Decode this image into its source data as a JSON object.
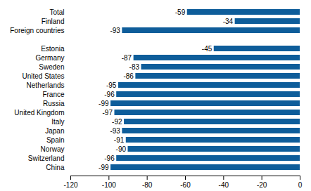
{
  "chart_data": {
    "type": "bar",
    "orientation": "horizontal",
    "categories": [
      "Total",
      "Finland",
      "Foreign countries",
      null,
      "Estonia",
      "Germany",
      "Sweden",
      "United States",
      "Netherlands",
      "France",
      "Russia",
      "United Kingdom",
      "Italy",
      "Japan",
      "Spain",
      "Norway",
      "Switzerland",
      "China"
    ],
    "values": [
      -59,
      -34,
      -93,
      null,
      -45,
      -87,
      -83,
      -86,
      -95,
      -96,
      -99,
      -97,
      -92,
      -93,
      -91,
      -90,
      -96,
      -99
    ],
    "color": "#0e5d9a",
    "xlim": [
      -120,
      0
    ],
    "xticks": [
      -120,
      -100,
      -80,
      -60,
      -40,
      -20,
      0
    ],
    "grid": false,
    "data_labels": true
  }
}
